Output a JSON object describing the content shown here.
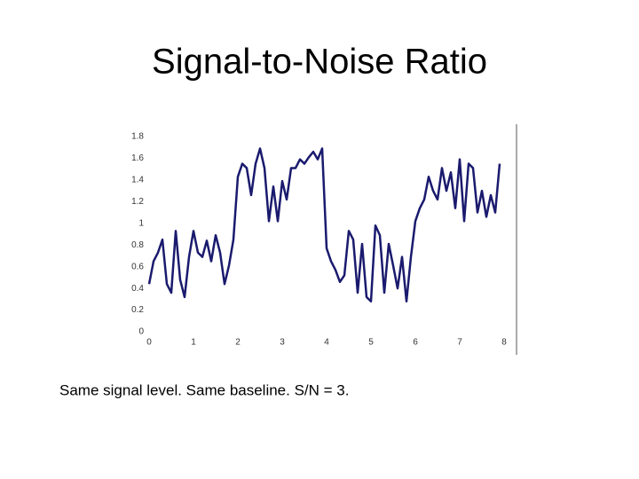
{
  "chart_data": {
    "type": "line",
    "title": "Signal-to-Noise Ratio",
    "annotation": "Same signal level.  Same baseline.  S/N = 3.",
    "xlim": [
      0,
      8
    ],
    "xticks": [
      0,
      1,
      2,
      3,
      4,
      5,
      6,
      7,
      8
    ],
    "ylim": [
      0,
      1.8
    ],
    "yticks": [
      0,
      0.2,
      0.4,
      0.6,
      0.8,
      1,
      1.2,
      1.4,
      1.6,
      1.8
    ],
    "grid": false,
    "series": [
      {
        "color": "#1a1a6e",
        "x": [
          0,
          0.1,
          0.2,
          0.3,
          0.4,
          0.5,
          0.6,
          0.7,
          0.8,
          0.9,
          1,
          1.1,
          1.2,
          1.3,
          1.4,
          1.5,
          1.6,
          1.7,
          1.8,
          1.9,
          2,
          2.1,
          2.2,
          2.3,
          2.4,
          2.5,
          2.6,
          2.7,
          2.8,
          2.9,
          3,
          3.1,
          3.2,
          3.3,
          3.4,
          3.5,
          3.6,
          3.7,
          3.8,
          3.9,
          4,
          4.1,
          4.2,
          4.3,
          4.4,
          4.5,
          4.6,
          4.7,
          4.8,
          4.9,
          5,
          5.1,
          5.2,
          5.3,
          5.4,
          5.5,
          5.6,
          5.7,
          5.8,
          5.9,
          6,
          6.1,
          6.2,
          6.3,
          6.4,
          6.5,
          6.6,
          6.7,
          6.8,
          6.9,
          7,
          7.1,
          7.2,
          7.3,
          7.4,
          7.5,
          7.6,
          7.7,
          7.8,
          7.9
        ],
        "values": [
          0.44,
          0.65,
          0.73,
          0.85,
          0.44,
          0.36,
          0.93,
          0.48,
          0.32,
          0.69,
          0.93,
          0.73,
          0.69,
          0.84,
          0.65,
          0.89,
          0.73,
          0.44,
          0.61,
          0.85,
          1.43,
          1.55,
          1.51,
          1.26,
          1.55,
          1.69,
          1.51,
          1.02,
          1.34,
          1.02,
          1.39,
          1.22,
          1.51,
          1.51,
          1.59,
          1.55,
          1.61,
          1.66,
          1.59,
          1.69,
          0.77,
          0.65,
          0.57,
          0.46,
          0.52,
          0.93,
          0.85,
          0.36,
          0.81,
          0.32,
          0.28,
          0.98,
          0.89,
          0.36,
          0.81,
          0.61,
          0.4,
          0.69,
          0.28,
          0.69,
          1.02,
          1.14,
          1.22,
          1.43,
          1.3,
          1.22,
          1.51,
          1.3,
          1.47,
          1.14,
          1.59,
          1.02,
          1.55,
          1.51,
          1.1,
          1.3,
          1.06,
          1.26,
          1.1,
          1.55
        ]
      }
    ]
  }
}
